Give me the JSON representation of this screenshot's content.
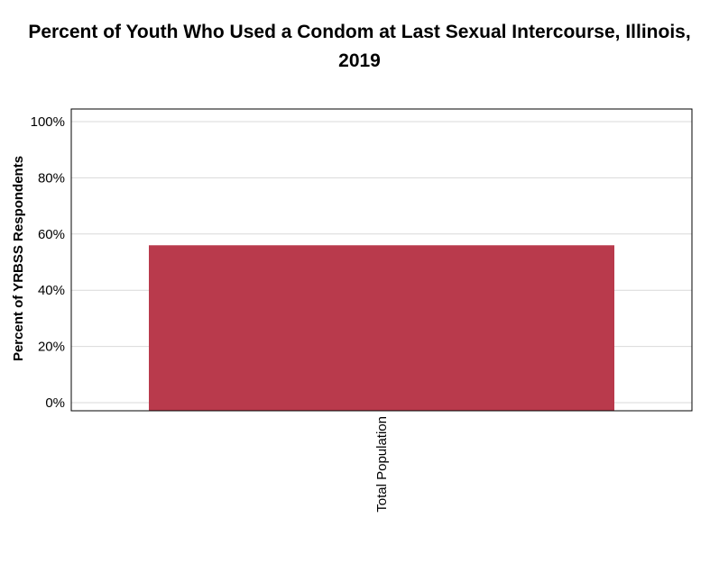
{
  "chart_data": {
    "type": "bar",
    "title_lines": [
      "Percent of Youth Who Used a Condom at Last Sexual Intercourse, Illinois,",
      "2019"
    ],
    "xlabel": "",
    "ylabel": "Percent of YRBSS Respondents",
    "categories": [
      "Total Population"
    ],
    "series": [
      {
        "values": [
          56
        ],
        "color": "#b93a4c"
      }
    ],
    "ylim": [
      0,
      100
    ],
    "yticks": [
      0,
      20,
      40,
      60,
      80,
      100
    ],
    "ytick_labels": [
      "0%",
      "20%",
      "40%",
      "60%",
      "80%",
      "100%"
    ],
    "grid": true,
    "gridline_color": "#d9d9d9",
    "frame_color": "#000000"
  }
}
